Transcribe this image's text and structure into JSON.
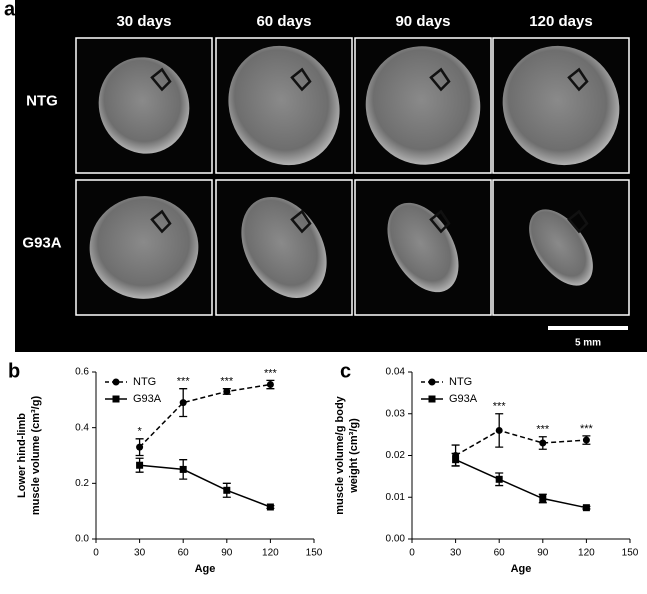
{
  "panel_a": {
    "label": "a",
    "columns": [
      "30 days",
      "60 days",
      "90 days",
      "120 days"
    ],
    "rows": [
      "NTG",
      "G93A"
    ],
    "scale_bar": "5 mm"
  },
  "chart_data": [
    {
      "type": "line",
      "panel_label": "b",
      "xlabel": "Age",
      "ylabel": [
        "Lower hind-limb",
        "muscle volume (cm³/g)"
      ],
      "x": [
        30,
        60,
        90,
        120
      ],
      "xlim": [
        0,
        150
      ],
      "xticks": [
        0,
        30,
        60,
        90,
        120,
        150
      ],
      "ylim": [
        0,
        0.6
      ],
      "yticks": [
        {
          "value": 0,
          "label": "0.0"
        },
        0.2,
        0.4,
        0.6
      ],
      "legend": "upper-left",
      "series": [
        {
          "name": "NTG",
          "color": "#000000",
          "dashed": true,
          "marker": "circle",
          "values": [
            0.33,
            0.49,
            0.53,
            0.555
          ],
          "errors": [
            0.03,
            0.05,
            0.01,
            0.015
          ],
          "significance": [
            "*",
            "***",
            "***",
            "***"
          ]
        },
        {
          "name": "G93A",
          "color": "#000000",
          "dashed": false,
          "marker": "square",
          "values": [
            0.265,
            0.25,
            0.175,
            0.115
          ],
          "errors": [
            0.025,
            0.035,
            0.025,
            0.005
          ]
        }
      ]
    },
    {
      "type": "line",
      "panel_label": "c",
      "xlabel": "Age",
      "ylabel": [
        "muscle volume/g body",
        "weight (cm³/g)"
      ],
      "x": [
        30,
        60,
        90,
        120
      ],
      "xlim": [
        0,
        150
      ],
      "xticks": [
        0,
        30,
        60,
        90,
        120,
        150
      ],
      "ylim": [
        0,
        0.04
      ],
      "yticks": [
        {
          "value": 0,
          "label": "0.00"
        },
        {
          "value": 0.01,
          "label": "0.01"
        },
        {
          "value": 0.02,
          "label": "0.02"
        },
        {
          "value": 0.03,
          "label": "0.03"
        },
        {
          "value": 0.04,
          "label": "0.04"
        }
      ],
      "legend": "upper-left",
      "series": [
        {
          "name": "NTG",
          "color": "#000000",
          "dashed": true,
          "marker": "circle",
          "values": [
            0.02,
            0.026,
            0.023,
            0.0237
          ],
          "errors": [
            0.0025,
            0.004,
            0.0015,
            0.001
          ],
          "significance": [
            null,
            "***",
            "***",
            "***"
          ]
        },
        {
          "name": "G93A",
          "color": "#000000",
          "dashed": false,
          "marker": "square",
          "values": [
            0.019,
            0.0143,
            0.0097,
            0.0075
          ],
          "errors": [
            0.0015,
            0.0015,
            0.001,
            0.0003
          ]
        }
      ]
    }
  ]
}
